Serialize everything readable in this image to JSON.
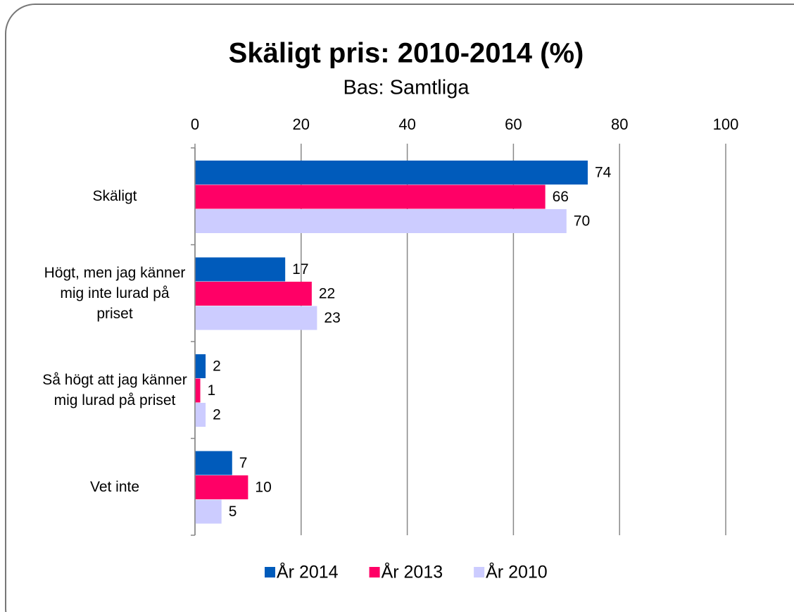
{
  "chart_data": {
    "type": "bar",
    "orientation": "horizontal",
    "title": "Skäligt pris: 2010-2014 (%)",
    "subtitle": "Bas: Samtliga",
    "categories": [
      "Skäligt",
      "Högt, men jag känner mig inte lurad på priset",
      "Så högt att jag känner mig lurad på priset",
      "Vet inte"
    ],
    "series": [
      {
        "name": "År 2014",
        "color": "#005bbb",
        "values": [
          74,
          17,
          2,
          7
        ]
      },
      {
        "name": "År 2013",
        "color": "#ff0066",
        "values": [
          66,
          22,
          1,
          10
        ]
      },
      {
        "name": "År 2010",
        "color": "#ccccff",
        "values": [
          70,
          23,
          2,
          5
        ]
      }
    ],
    "xlim": [
      0,
      100
    ],
    "xticks": [
      0,
      20,
      40,
      60,
      80,
      100
    ],
    "grid": true,
    "legend": "bottom"
  }
}
